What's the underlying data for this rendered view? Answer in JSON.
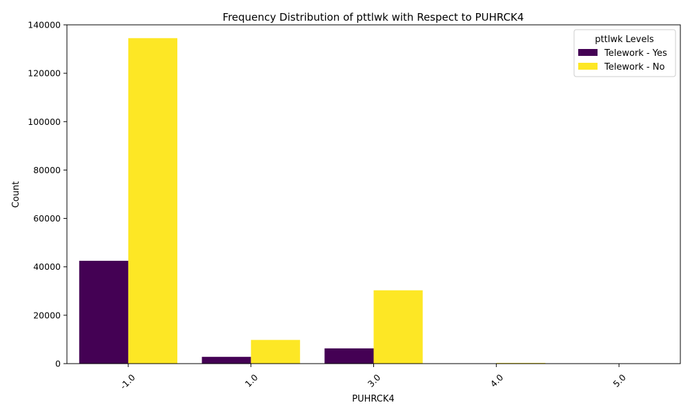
{
  "chart_data": {
    "type": "bar",
    "title": "Frequency Distribution of pttlwk with Respect to PUHRCK4",
    "xlabel": "PUHRCK4",
    "ylabel": "Count",
    "categories": [
      "-1.0",
      "1.0",
      "3.0",
      "4.0",
      "5.0"
    ],
    "series": [
      {
        "name": "Telework - Yes",
        "color": "#440154",
        "values": [
          42500,
          2800,
          6300,
          0,
          0
        ]
      },
      {
        "name": "Telework - No",
        "color": "#fde725",
        "values": [
          134500,
          9800,
          30300,
          300,
          0
        ]
      }
    ],
    "ylim": [
      0,
      140000
    ],
    "yticks": [
      0,
      20000,
      40000,
      60000,
      80000,
      100000,
      120000,
      140000
    ],
    "legend": {
      "title": "pttlwk Levels",
      "placement": "top-right"
    },
    "grid": false
  }
}
